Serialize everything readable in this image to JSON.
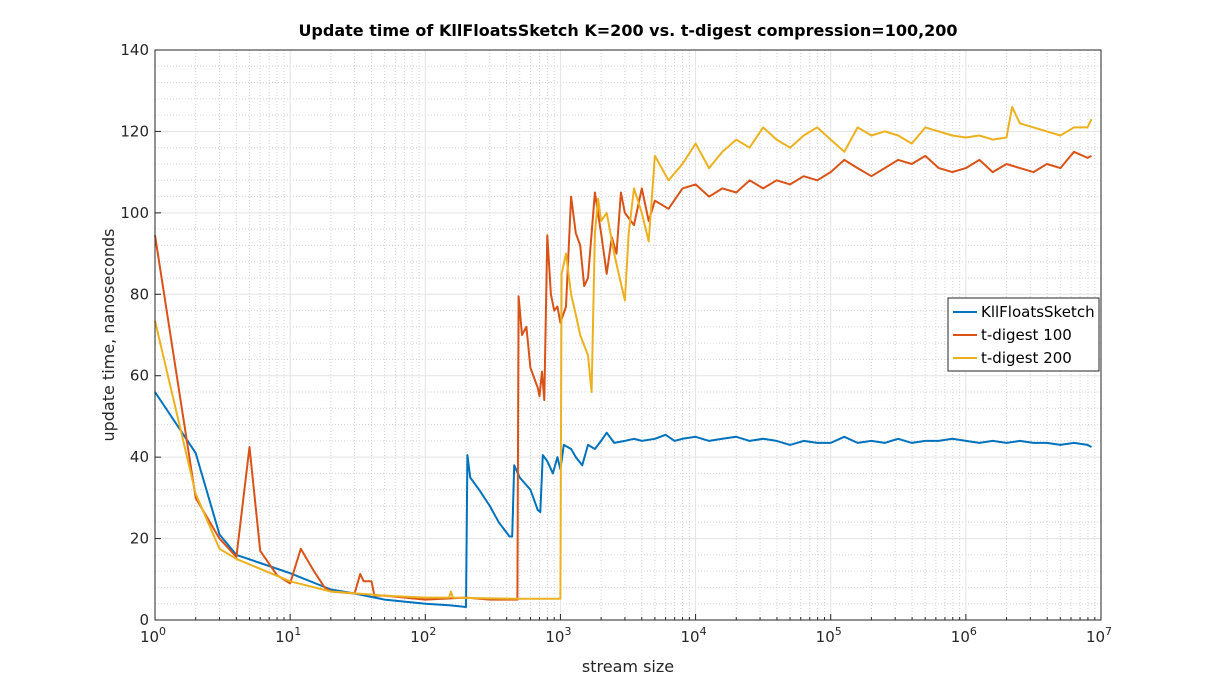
{
  "chart_data": {
    "type": "line",
    "title": "Update time of KllFloatsSketch K=200 vs. t-digest compression=100,200",
    "xlabel": "stream size",
    "ylabel": "update time, nanoseconds",
    "xscale": "log",
    "xlim": [
      1,
      10000000
    ],
    "ylim": [
      0,
      140
    ],
    "xticks": [
      1,
      10,
      100,
      1000,
      10000,
      100000,
      1000000,
      10000000
    ],
    "xtick_labels": [
      {
        "base": "10",
        "exp": "0"
      },
      {
        "base": "10",
        "exp": "1"
      },
      {
        "base": "10",
        "exp": "2"
      },
      {
        "base": "10",
        "exp": "3"
      },
      {
        "base": "10",
        "exp": "4"
      },
      {
        "base": "10",
        "exp": "5"
      },
      {
        "base": "10",
        "exp": "6"
      },
      {
        "base": "10",
        "exp": "7"
      }
    ],
    "yticks": [
      0,
      20,
      40,
      60,
      80,
      100,
      120,
      140
    ],
    "grid": true,
    "minor_grid": true,
    "legend_position": "right",
    "series": [
      {
        "name": "KllFloatsSketch",
        "color": "#0072BD",
        "points": [
          [
            1,
            56
          ],
          [
            2,
            41
          ],
          [
            3,
            21
          ],
          [
            4,
            16
          ],
          [
            6,
            14
          ],
          [
            10,
            11.5
          ],
          [
            20,
            7.5
          ],
          [
            30,
            6.5
          ],
          [
            50,
            5
          ],
          [
            100,
            4
          ],
          [
            150,
            3.6
          ],
          [
            200,
            3.2
          ],
          [
            205,
            40.5
          ],
          [
            215,
            35
          ],
          [
            250,
            32
          ],
          [
            300,
            28
          ],
          [
            350,
            24
          ],
          [
            420,
            20.5
          ],
          [
            440,
            20.5
          ],
          [
            455,
            38
          ],
          [
            500,
            35
          ],
          [
            600,
            32
          ],
          [
            680,
            27
          ],
          [
            710,
            26.5
          ],
          [
            740,
            40.5
          ],
          [
            800,
            39
          ],
          [
            880,
            36
          ],
          [
            950,
            40
          ],
          [
            1000,
            37
          ],
          [
            1060,
            43
          ],
          [
            1200,
            42
          ],
          [
            1300,
            40
          ],
          [
            1450,
            38
          ],
          [
            1600,
            43
          ],
          [
            1800,
            42
          ],
          [
            2000,
            44
          ],
          [
            2200,
            46
          ],
          [
            2500,
            43.5
          ],
          [
            3000,
            44
          ],
          [
            3500,
            44.5
          ],
          [
            4000,
            44
          ],
          [
            5000,
            44.5
          ],
          [
            6000,
            45.5
          ],
          [
            7000,
            44
          ],
          [
            8000,
            44.5
          ],
          [
            10000,
            45
          ],
          [
            12600,
            44
          ],
          [
            15800,
            44.5
          ],
          [
            20000,
            45
          ],
          [
            25100,
            44
          ],
          [
            31600,
            44.5
          ],
          [
            39800,
            44
          ],
          [
            50100,
            43
          ],
          [
            63100,
            44
          ],
          [
            79400,
            43.5
          ],
          [
            100000,
            43.5
          ],
          [
            126000,
            45
          ],
          [
            158000,
            43.5
          ],
          [
            200000,
            44
          ],
          [
            251000,
            43.5
          ],
          [
            316000,
            44.5
          ],
          [
            398000,
            43.5
          ],
          [
            501000,
            44
          ],
          [
            631000,
            44
          ],
          [
            794000,
            44.5
          ],
          [
            1000000,
            44
          ],
          [
            1260000,
            43.5
          ],
          [
            1580000,
            44
          ],
          [
            2000000,
            43.5
          ],
          [
            2510000,
            44
          ],
          [
            3160000,
            43.5
          ],
          [
            3980000,
            43.5
          ],
          [
            5010000,
            43
          ],
          [
            6310000,
            43.5
          ],
          [
            7940000,
            43
          ],
          [
            8500000,
            42.5
          ]
        ]
      },
      {
        "name": "t-digest 100",
        "color": "#D95319",
        "points": [
          [
            1,
            94.5
          ],
          [
            2,
            30
          ],
          [
            3,
            20
          ],
          [
            4,
            15.5
          ],
          [
            5,
            42.5
          ],
          [
            6,
            17
          ],
          [
            8,
            11
          ],
          [
            10,
            9
          ],
          [
            12,
            17.5
          ],
          [
            15,
            12
          ],
          [
            18,
            8
          ],
          [
            20,
            7
          ],
          [
            30,
            6.5
          ],
          [
            33,
            11.3
          ],
          [
            35,
            9.5
          ],
          [
            40,
            9.5
          ],
          [
            42,
            6
          ],
          [
            50,
            6
          ],
          [
            100,
            5
          ],
          [
            200,
            5.5
          ],
          [
            300,
            5
          ],
          [
            480,
            5
          ],
          [
            490,
            79.5
          ],
          [
            520,
            70
          ],
          [
            560,
            72
          ],
          [
            600,
            62
          ],
          [
            680,
            57
          ],
          [
            700,
            55
          ],
          [
            730,
            61
          ],
          [
            760,
            54
          ],
          [
            800,
            94.5
          ],
          [
            850,
            80
          ],
          [
            900,
            76
          ],
          [
            950,
            77
          ],
          [
            1000,
            73
          ],
          [
            1100,
            77
          ],
          [
            1200,
            104
          ],
          [
            1300,
            95
          ],
          [
            1400,
            92
          ],
          [
            1500,
            82
          ],
          [
            1600,
            84
          ],
          [
            1800,
            105
          ],
          [
            2000,
            95
          ],
          [
            2200,
            85
          ],
          [
            2400,
            94
          ],
          [
            2600,
            90
          ],
          [
            2800,
            105
          ],
          [
            3000,
            100
          ],
          [
            3500,
            97
          ],
          [
            4000,
            106
          ],
          [
            4500,
            98
          ],
          [
            5000,
            103
          ],
          [
            6300,
            101
          ],
          [
            8000,
            106
          ],
          [
            10000,
            107
          ],
          [
            12600,
            104
          ],
          [
            15800,
            106
          ],
          [
            20000,
            105
          ],
          [
            25100,
            108
          ],
          [
            31600,
            106
          ],
          [
            39800,
            108
          ],
          [
            50100,
            107
          ],
          [
            63100,
            109
          ],
          [
            79400,
            108
          ],
          [
            100000,
            110
          ],
          [
            126000,
            113
          ],
          [
            158000,
            111
          ],
          [
            200000,
            109
          ],
          [
            251000,
            111
          ],
          [
            316000,
            113
          ],
          [
            398000,
            112
          ],
          [
            501000,
            114
          ],
          [
            631000,
            111
          ],
          [
            794000,
            110
          ],
          [
            1000000,
            111
          ],
          [
            1260000,
            113
          ],
          [
            1580000,
            110
          ],
          [
            2000000,
            112
          ],
          [
            2510000,
            111
          ],
          [
            3160000,
            110
          ],
          [
            3980000,
            112
          ],
          [
            5010000,
            111
          ],
          [
            6310000,
            115
          ],
          [
            7940000,
            113.5
          ],
          [
            8500000,
            114
          ]
        ]
      },
      {
        "name": "t-digest 200",
        "color": "#EDB120",
        "points": [
          [
            1,
            73.5
          ],
          [
            2,
            31
          ],
          [
            3,
            17.5
          ],
          [
            4,
            15
          ],
          [
            10,
            9.5
          ],
          [
            20,
            7
          ],
          [
            50,
            6
          ],
          [
            100,
            5.5
          ],
          [
            150,
            5.5
          ],
          [
            155,
            7
          ],
          [
            160,
            5.5
          ],
          [
            300,
            5.3
          ],
          [
            500,
            5.2
          ],
          [
            1000,
            5.2
          ],
          [
            1020,
            85
          ],
          [
            1100,
            90
          ],
          [
            1200,
            80
          ],
          [
            1300,
            75
          ],
          [
            1400,
            70
          ],
          [
            1600,
            65
          ],
          [
            1700,
            56
          ],
          [
            1800,
            95
          ],
          [
            1900,
            103.5
          ],
          [
            2000,
            98
          ],
          [
            2200,
            100
          ],
          [
            2500,
            90
          ],
          [
            2700,
            85
          ],
          [
            3000,
            78.5
          ],
          [
            3200,
            95
          ],
          [
            3500,
            106
          ],
          [
            4000,
            100
          ],
          [
            4500,
            93
          ],
          [
            5000,
            114
          ],
          [
            6300,
            108
          ],
          [
            8000,
            112
          ],
          [
            10000,
            117
          ],
          [
            12600,
            111
          ],
          [
            15800,
            115
          ],
          [
            20000,
            118
          ],
          [
            25100,
            116
          ],
          [
            31600,
            121
          ],
          [
            39800,
            118
          ],
          [
            50100,
            116
          ],
          [
            63100,
            119
          ],
          [
            79400,
            121
          ],
          [
            100000,
            118
          ],
          [
            126000,
            115
          ],
          [
            158000,
            121
          ],
          [
            200000,
            119
          ],
          [
            251000,
            120
          ],
          [
            316000,
            119
          ],
          [
            398000,
            117
          ],
          [
            501000,
            121
          ],
          [
            631000,
            120
          ],
          [
            794000,
            119
          ],
          [
            1000000,
            118.5
          ],
          [
            1260000,
            119
          ],
          [
            1580000,
            118
          ],
          [
            2000000,
            118.5
          ],
          [
            2200000,
            126
          ],
          [
            2510000,
            122
          ],
          [
            3160000,
            121
          ],
          [
            3980000,
            120
          ],
          [
            5010000,
            119
          ],
          [
            6310000,
            121
          ],
          [
            7940000,
            121
          ],
          [
            8500000,
            123
          ]
        ]
      }
    ]
  }
}
